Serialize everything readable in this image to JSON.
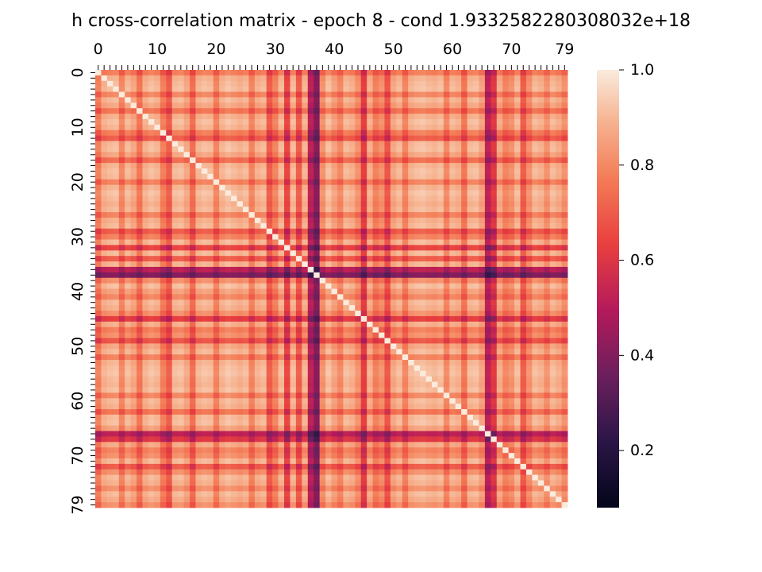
{
  "chart_data": {
    "type": "heatmap",
    "title": "h cross-correlation matrix - epoch 8 - cond 1.9332582280308032e+18",
    "size": 80,
    "x_tick_labels": [
      "0",
      "10",
      "20",
      "30",
      "40",
      "50",
      "60",
      "70",
      "79"
    ],
    "y_tick_labels": [
      "0",
      "10",
      "20",
      "30",
      "40",
      "50",
      "60",
      "70",
      "79"
    ],
    "x_axis_position": "top",
    "colorbar": {
      "min": 0.08,
      "max": 1.0,
      "tick_labels": [
        "0.2",
        "0.4",
        "0.6",
        "0.8",
        "1.0"
      ],
      "position": "right",
      "colormap": "rocket"
    },
    "diagonal_value": 1.0,
    "row_levels": [
      0.82,
      0.93,
      0.95,
      0.96,
      0.84,
      0.95,
      0.91,
      0.8,
      0.93,
      0.96,
      0.94,
      0.82,
      0.74,
      0.95,
      0.96,
      0.91,
      0.78,
      0.94,
      0.96,
      0.95,
      0.83,
      0.94,
      0.97,
      0.95,
      0.93,
      0.95,
      0.83,
      0.93,
      0.95,
      0.74,
      0.83,
      0.95,
      0.68,
      0.95,
      0.74,
      0.94,
      0.55,
      0.43,
      0.86,
      0.96,
      0.9,
      0.84,
      0.95,
      0.93,
      0.86,
      0.66,
      0.93,
      0.82,
      0.86,
      0.72,
      0.91,
      0.95,
      0.83,
      0.94,
      0.96,
      0.97,
      0.95,
      0.94,
      0.96,
      0.84,
      0.95,
      0.93,
      0.8,
      0.95,
      0.96,
      0.9,
      0.55,
      0.64,
      0.92,
      0.83,
      0.86,
      0.95,
      0.74,
      0.86,
      0.95,
      0.93,
      0.86,
      0.95,
      0.92,
      0.86
    ]
  }
}
